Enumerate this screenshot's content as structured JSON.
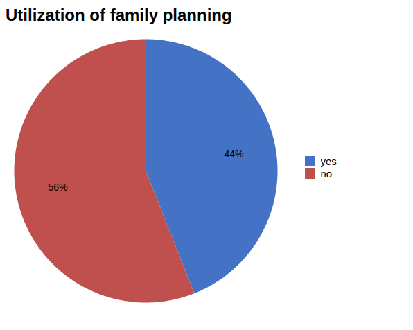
{
  "chart_data": {
    "type": "pie",
    "title": "Utilization of family planning",
    "categories": [
      "yes",
      "no"
    ],
    "values": [
      44,
      56
    ],
    "value_labels": [
      "44%",
      "56%"
    ],
    "colors": [
      "#4472C4",
      "#C0504D"
    ],
    "data_labels": true,
    "legend": "right"
  }
}
